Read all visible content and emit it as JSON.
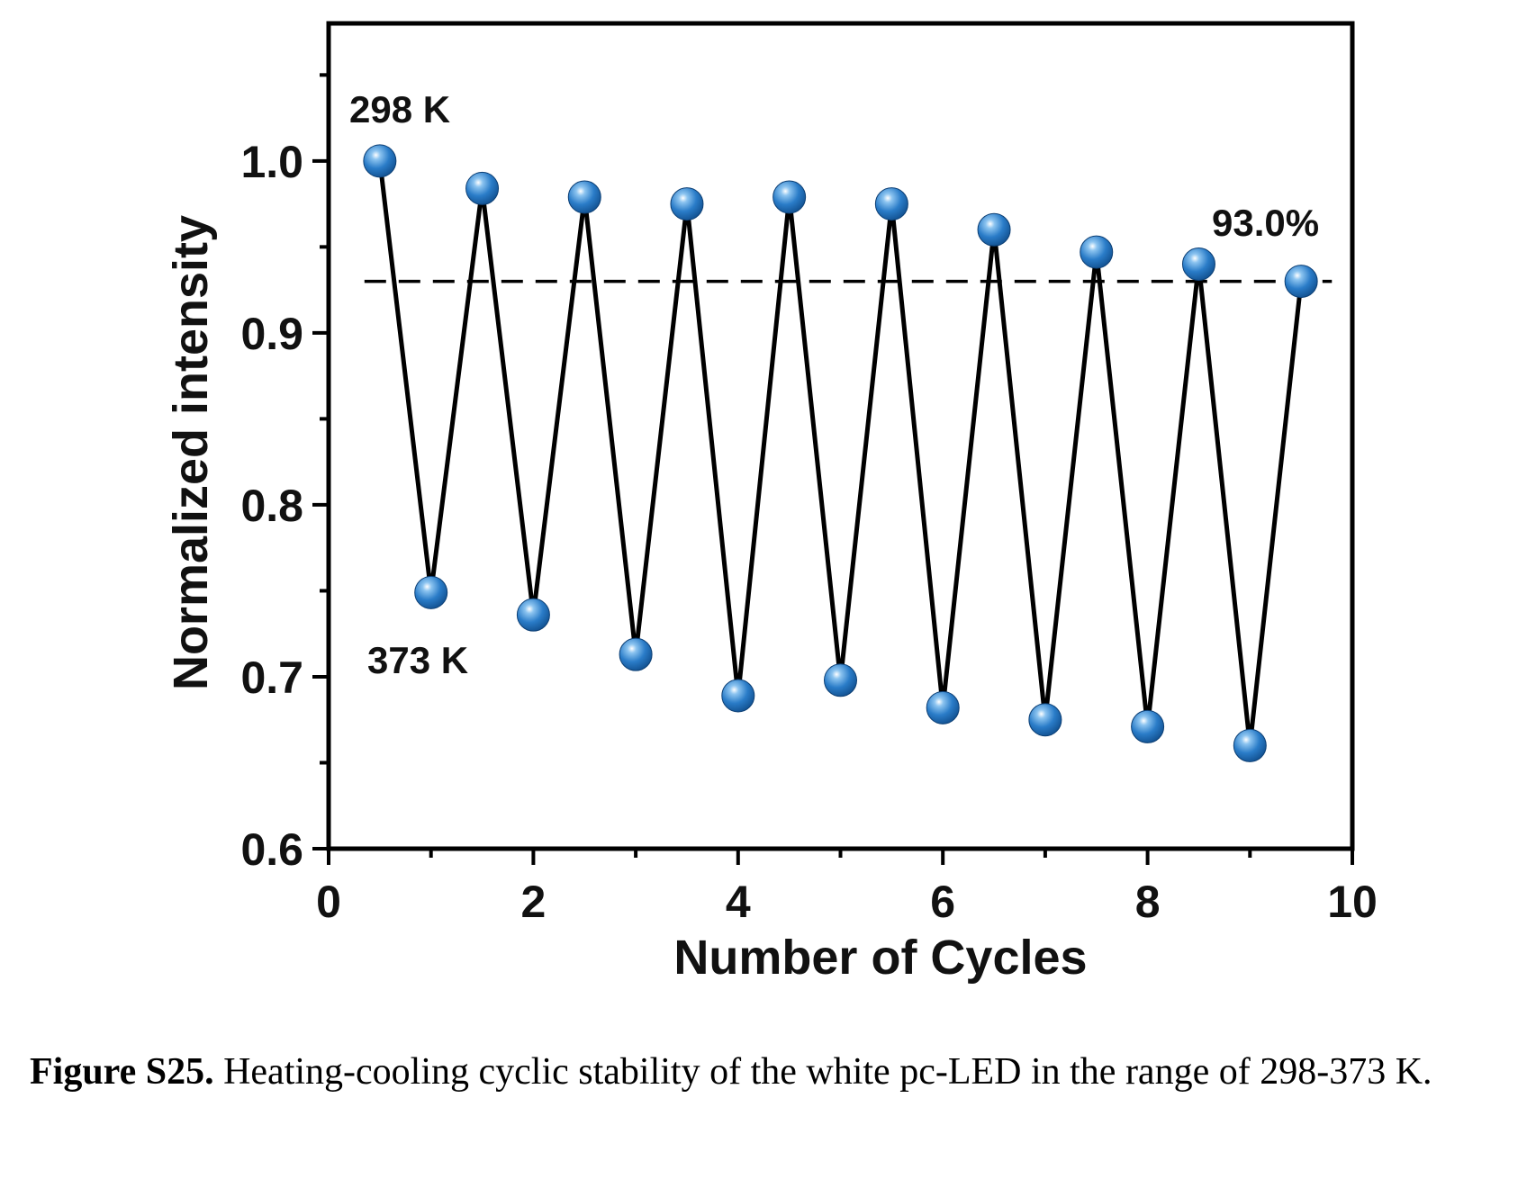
{
  "chart_data": {
    "type": "line",
    "xlabel": "Number of Cycles",
    "ylabel": "Normalized intensity",
    "xlim": [
      0,
      10
    ],
    "ylim": [
      0.6,
      1.08
    ],
    "xticks": [
      "0",
      "2",
      "4",
      "6",
      "8",
      "10"
    ],
    "yticks": [
      "0.6",
      "0.7",
      "0.8",
      "0.9",
      "1.0"
    ],
    "series": [
      {
        "x": [
          0.5,
          1,
          1.5,
          2,
          2.5,
          3,
          3.5,
          4,
          4.5,
          5,
          5.5,
          6,
          6.5,
          7,
          7.5,
          8,
          8.5,
          9,
          9.5
        ],
        "values": [
          1.0,
          0.749,
          0.984,
          0.736,
          0.979,
          0.713,
          0.975,
          0.689,
          0.979,
          0.698,
          0.975,
          0.682,
          0.96,
          0.675,
          0.947,
          0.671,
          0.94,
          0.66,
          0.93
        ]
      }
    ],
    "reference_line": {
      "y": 0.93,
      "style": "dashed"
    },
    "annotations": {
      "high_temp": "298 K",
      "low_temp": "373 K",
      "retention": "93.0%"
    },
    "marker_color": "#1f6fb8",
    "line_color": "#000000",
    "grid": false
  },
  "caption": {
    "label": "Figure S25.",
    "text": " Heating-cooling cyclic stability of the white pc-LED in the range of 298-373 K."
  }
}
